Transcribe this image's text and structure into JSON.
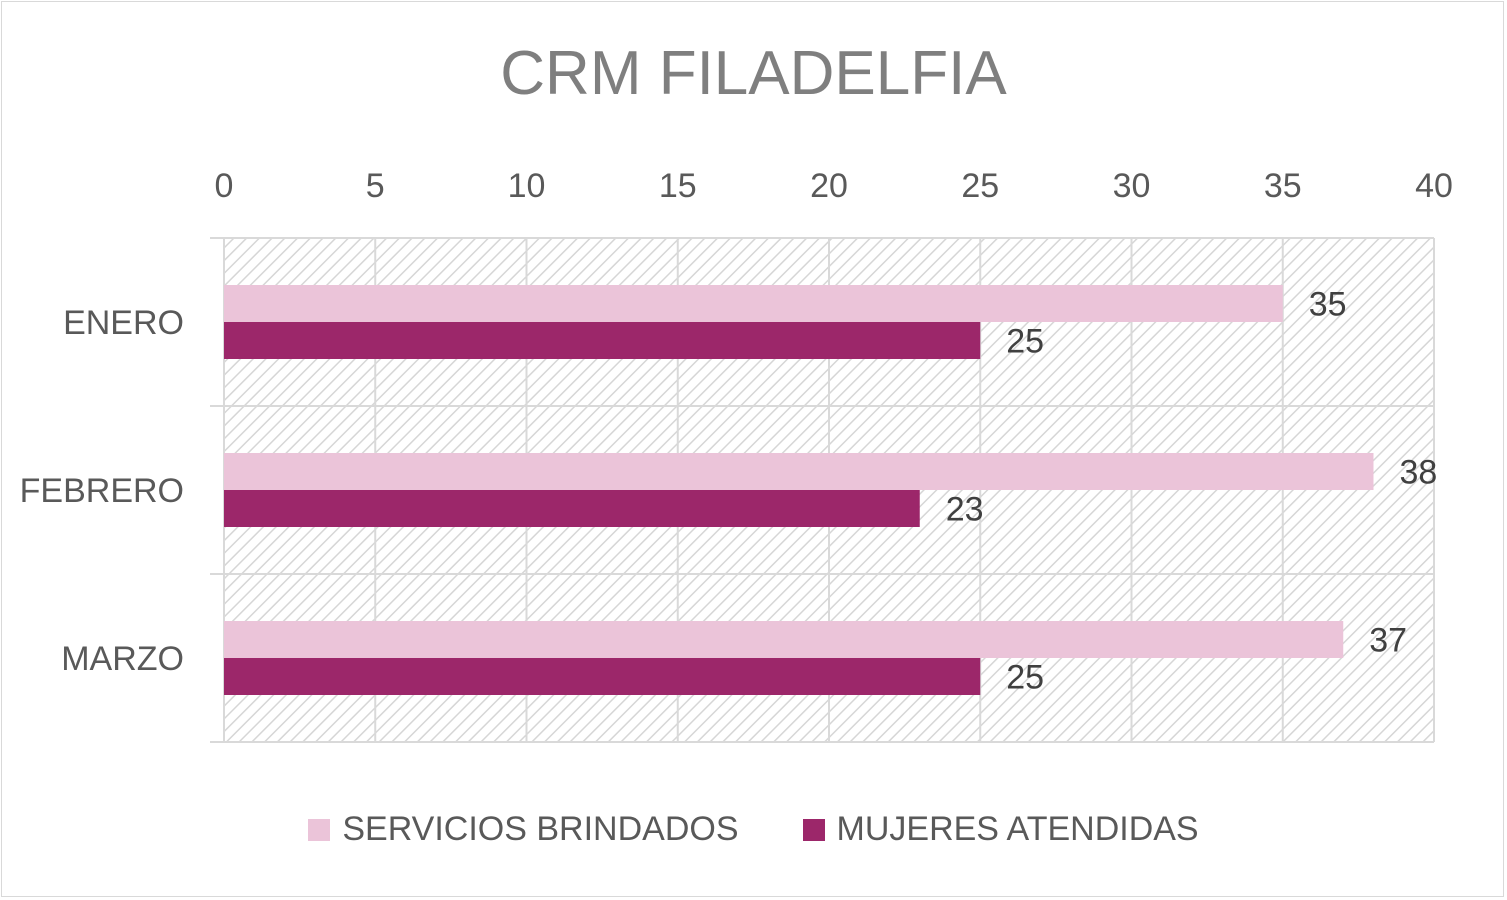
{
  "chart_data": {
    "type": "bar",
    "orientation": "horizontal",
    "title": "CRM FILADELFIA",
    "categories": [
      "ENERO",
      "FEBRERO",
      "MARZO"
    ],
    "series": [
      {
        "name": "SERVICIOS BRINDADOS",
        "values": [
          35,
          38,
          37
        ],
        "color": "#ebc4d9"
      },
      {
        "name": "MUJERES ATENDIDAS",
        "values": [
          25,
          23,
          25
        ],
        "color": "#9c276a"
      }
    ],
    "xlim": [
      0,
      40
    ],
    "xticks": [
      0,
      5,
      10,
      15,
      20,
      25,
      30,
      35,
      40
    ],
    "x_axis_position": "top",
    "grid": true,
    "data_labels": true,
    "legend": "bottom"
  }
}
